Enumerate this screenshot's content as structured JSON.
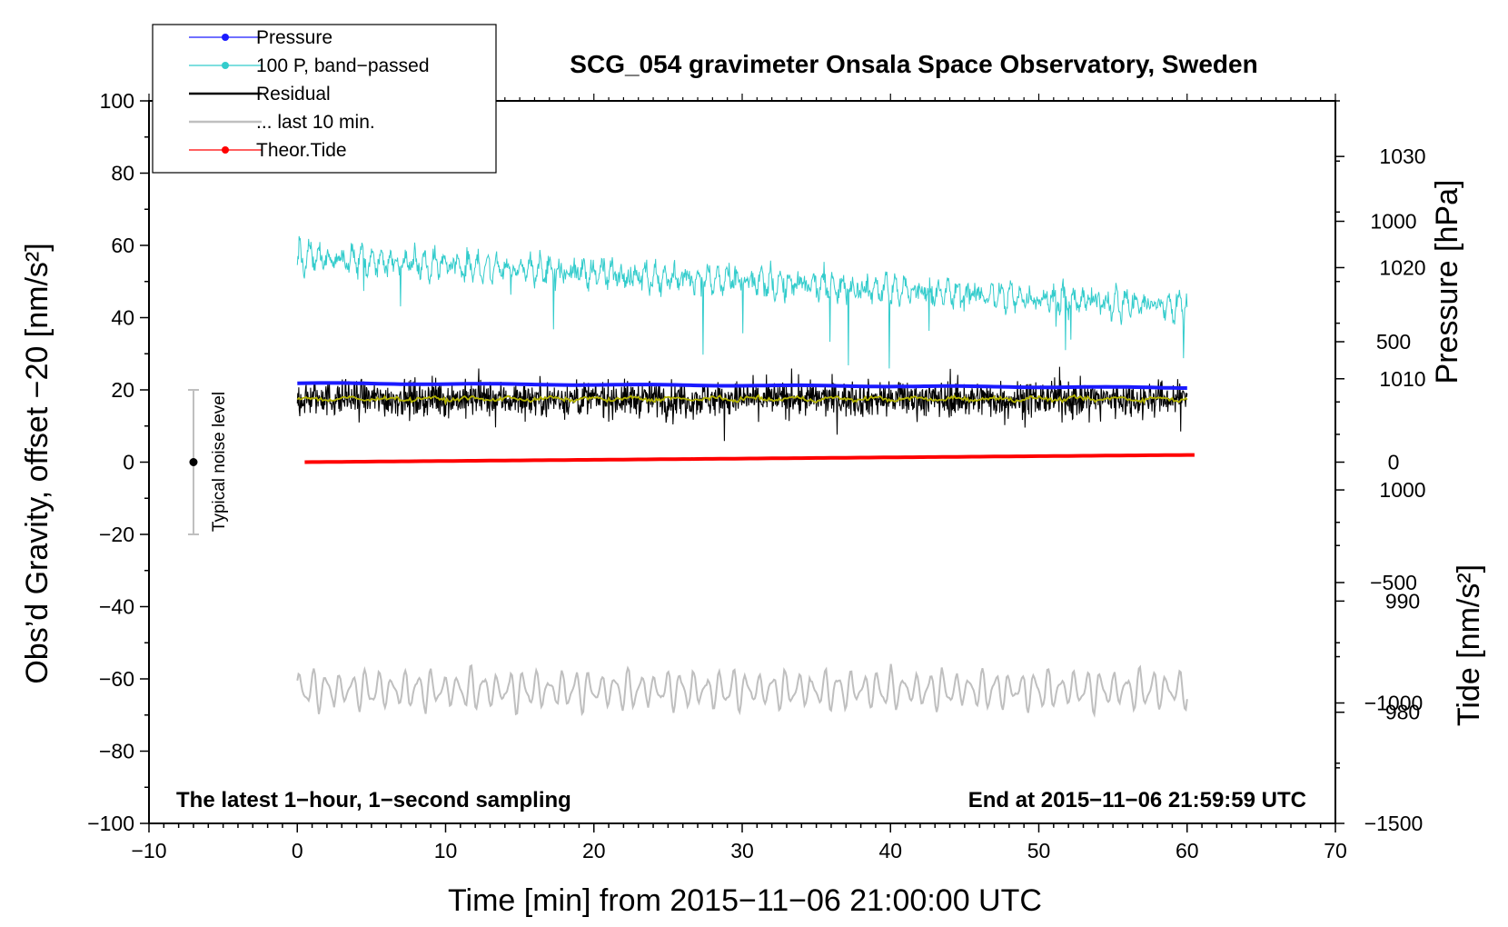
{
  "chart_data": {
    "type": "line",
    "title": "SCG_054 gravimeter Onsala Space Observatory, Sweden",
    "xlabel": "Time [min] from 2015−11−06 21:00:00 UTC",
    "ylabel_left": "Obs’d Gravity, offset −20 [nm/s²]",
    "ylabel_pressure": "Pressure [hPa]",
    "ylabel_tide": "Tide [nm/s²]",
    "xlim": [
      -10,
      70
    ],
    "ylim": [
      -100,
      100
    ],
    "pressure_lim": [
      970,
      1035
    ],
    "tide_lim": [
      -1500,
      1500
    ],
    "x_ticks": [
      {
        "value": -10,
        "label": "−10"
      },
      {
        "value": 0,
        "label": "0"
      },
      {
        "value": 10,
        "label": "10"
      },
      {
        "value": 20,
        "label": "20"
      },
      {
        "value": 30,
        "label": "30"
      },
      {
        "value": 40,
        "label": "40"
      },
      {
        "value": 50,
        "label": "50"
      },
      {
        "value": 60,
        "label": "60"
      },
      {
        "value": 70,
        "label": "70"
      }
    ],
    "y_ticks": [
      {
        "value": 100,
        "label": "100"
      },
      {
        "value": 80,
        "label": "80"
      },
      {
        "value": 60,
        "label": "60"
      },
      {
        "value": 40,
        "label": "40"
      },
      {
        "value": 20,
        "label": "20"
      },
      {
        "value": 0,
        "label": "0"
      },
      {
        "value": -20,
        "label": "−20"
      },
      {
        "value": -40,
        "label": "−40"
      },
      {
        "value": -60,
        "label": "−60"
      },
      {
        "value": -80,
        "label": "−80"
      },
      {
        "value": -100,
        "label": "−100"
      }
    ],
    "pressure_ticks": [
      {
        "value": 1030,
        "label": "1030"
      },
      {
        "value": 1020,
        "label": "1020"
      },
      {
        "value": 1010,
        "label": "1010"
      },
      {
        "value": 1000,
        "label": "1000"
      },
      {
        "value": 990,
        "label": "990"
      },
      {
        "value": 980,
        "label": "980"
      }
    ],
    "tide_ticks": [
      {
        "value": 1000,
        "label": "1000"
      },
      {
        "value": 500,
        "label": "500"
      },
      {
        "value": 0,
        "label": "0"
      },
      {
        "value": -500,
        "label": "−500"
      },
      {
        "value": -1000,
        "label": "−1000"
      },
      {
        "value": -1500,
        "label": "−1500"
      }
    ],
    "legend": [
      {
        "label": "Pressure",
        "color": "#1a1aff",
        "marker": true
      },
      {
        "label": "100 P, band−passed",
        "color": "#33cccc",
        "marker": true
      },
      {
        "label": "Residual",
        "color": "#000000",
        "marker": false
      },
      {
        "label": "... last 10 min.",
        "color": "#bfbfbf",
        "marker": false
      },
      {
        "label": "Theor.Tide",
        "color": "#ff0000",
        "marker": true
      }
    ],
    "annotations": {
      "left": "The latest 1−hour, 1−second sampling",
      "right": "End at 2015−11−06 21:59:59 UTC",
      "noise": "Typical noise level"
    },
    "noise_bar": {
      "x": -7,
      "center": 0,
      "low": -20,
      "high": 20
    },
    "series": [
      {
        "name": "Pressure",
        "axis": "pressure",
        "color": "#1a1aff",
        "x_range": [
          0,
          60
        ],
        "start": 1009.6,
        "end": 1009.2
      },
      {
        "name": "100 P, band−passed",
        "axis": "left",
        "color": "#33cccc",
        "x_range": [
          0,
          60
        ],
        "start": 57,
        "end": 43,
        "amplitude": 6
      },
      {
        "name": "Residual",
        "axis": "left",
        "color": "#000000",
        "x_range": [
          0,
          60
        ],
        "mean": 17.5,
        "amplitude": 6
      },
      {
        "name": "Residual smoothed",
        "axis": "left",
        "color": "#b3b300",
        "x_range": [
          0,
          60
        ],
        "mean": 17.5,
        "amplitude": 1
      },
      {
        "name": "... last 10 min.",
        "axis": "left",
        "color": "#bfbfbf",
        "x_range": [
          0,
          60
        ],
        "mean": -63,
        "amplitude": 6
      },
      {
        "name": "Theor.Tide",
        "axis": "tide",
        "color": "#ff0000",
        "x_range": [
          0.5,
          60.5
        ],
        "start": 0,
        "end": 30
      }
    ]
  }
}
